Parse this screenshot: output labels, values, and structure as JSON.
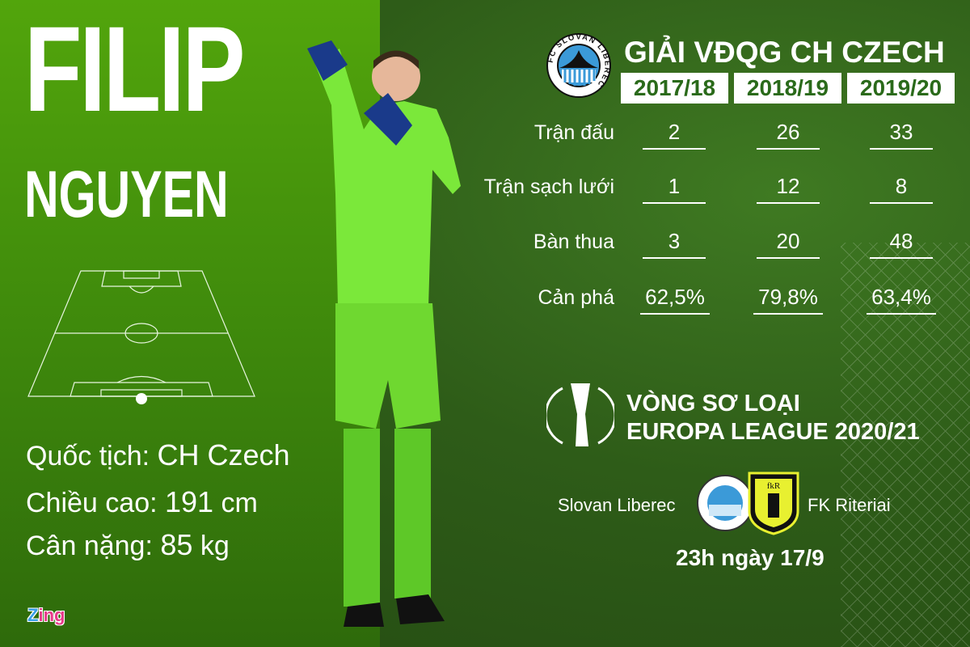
{
  "player": {
    "first_name": "FILIP",
    "last_name": "NGUYEN"
  },
  "details": [
    {
      "label": "Quốc tịch:",
      "value": "CH Czech",
      "unit": ""
    },
    {
      "label": "Chiều cao:",
      "value": "191",
      "unit": "cm"
    },
    {
      "label": "Cân nặng:",
      "value": "85",
      "unit": "kg"
    }
  ],
  "brand": {
    "logo_a": "Z",
    "logo_b": "ing"
  },
  "league": {
    "title": "GIẢI VĐQG CH CZECH",
    "club_logo_text": "FC SLOVAN LIBEREC",
    "seasons": [
      "2017/18",
      "2018/19",
      "2019/20"
    ]
  },
  "stats": [
    {
      "label": "Trận đấu",
      "values": [
        "2",
        "26",
        "33"
      ]
    },
    {
      "label": "Trận sạch lưới",
      "values": [
        "1",
        "12",
        "8"
      ]
    },
    {
      "label": "Bàn thua",
      "values": [
        "3",
        "20",
        "48"
      ]
    },
    {
      "label": "Cản phá",
      "values": [
        "62,5%",
        "79,8%",
        "63,4%"
      ]
    }
  ],
  "europa": {
    "line1": "VÒNG SƠ LOẠI",
    "line2": "EUROPA LEAGUE 2020/21"
  },
  "match": {
    "home": "Slovan Liberec",
    "away": "FK Riteriai",
    "away_logo_text": "fkR",
    "time": "23h ngày 17/9"
  },
  "colors": {
    "left_panel": "#4fa20c",
    "kit": "#7be83a",
    "season_text": "#2a6a1a"
  }
}
